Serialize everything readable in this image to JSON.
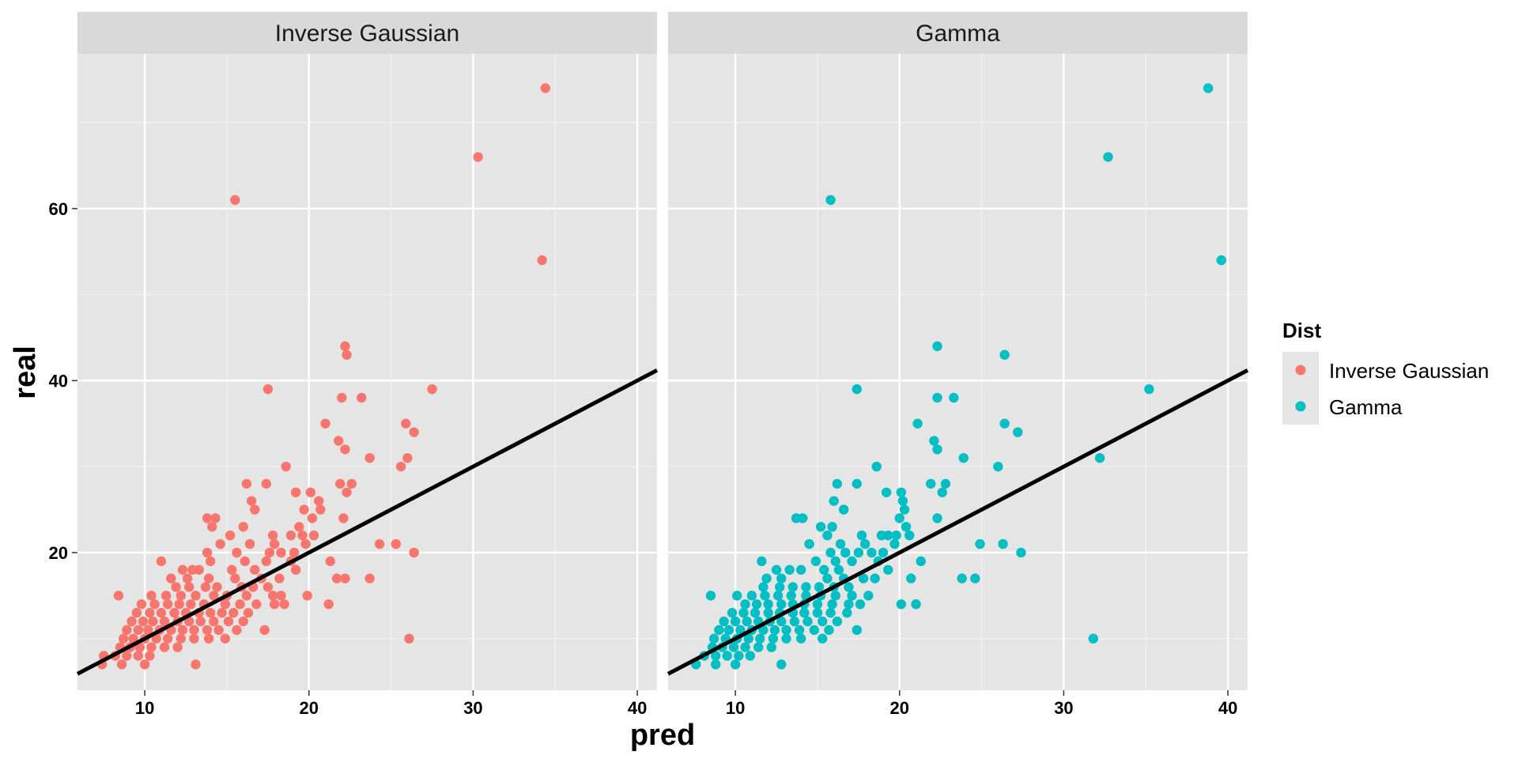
{
  "chart_data": {
    "type": "scatter",
    "facets": [
      "Inverse Gaussian",
      "Gamma"
    ],
    "xlabel": "pred",
    "ylabel": "real",
    "xlim": [
      5.9,
      41.2
    ],
    "ylim": [
      4.0,
      78.0
    ],
    "x_ticks": [
      10,
      20,
      30,
      40
    ],
    "y_ticks": [
      20,
      40,
      60
    ],
    "grid": true,
    "reference_line": {
      "intercept": 0,
      "slope": 1
    },
    "legend": {
      "title": "Dist",
      "position": "right",
      "items": [
        {
          "label": "Inverse Gaussian",
          "color": "#F8766D"
        },
        {
          "label": "Gamma",
          "color": "#00BFC4"
        }
      ]
    },
    "series": [
      {
        "name": "Inverse Gaussian",
        "color": "#F8766D",
        "points": [
          [
            34.4,
            74
          ],
          [
            30.3,
            66
          ],
          [
            15.5,
            61
          ],
          [
            34.2,
            54
          ],
          [
            22.2,
            44
          ],
          [
            22.3,
            43
          ],
          [
            17.5,
            39
          ],
          [
            27.5,
            39
          ],
          [
            22.0,
            38
          ],
          [
            23.2,
            38
          ],
          [
            21.0,
            35
          ],
          [
            25.9,
            35
          ],
          [
            26.4,
            34
          ],
          [
            21.8,
            33
          ],
          [
            22.2,
            32
          ],
          [
            23.7,
            31
          ],
          [
            26.0,
            31
          ],
          [
            18.6,
            30
          ],
          [
            25.6,
            30
          ],
          [
            16.2,
            28
          ],
          [
            17.4,
            28
          ],
          [
            21.9,
            28
          ],
          [
            22.6,
            28
          ],
          [
            19.2,
            27
          ],
          [
            20.1,
            27
          ],
          [
            22.3,
            27
          ],
          [
            16.5,
            26
          ],
          [
            19.7,
            25
          ],
          [
            20.6,
            26
          ],
          [
            20.7,
            25
          ],
          [
            16.7,
            25
          ],
          [
            20.2,
            24
          ],
          [
            22.1,
            24
          ],
          [
            13.8,
            24
          ],
          [
            14.3,
            24
          ],
          [
            14.1,
            23
          ],
          [
            16.0,
            23
          ],
          [
            19.4,
            23
          ],
          [
            15.2,
            22
          ],
          [
            17.8,
            22
          ],
          [
            18.9,
            22
          ],
          [
            19.6,
            22
          ],
          [
            20.3,
            22
          ],
          [
            14.6,
            21
          ],
          [
            16.4,
            21
          ],
          [
            17.9,
            21
          ],
          [
            19.8,
            21
          ],
          [
            24.3,
            21
          ],
          [
            25.3,
            21
          ],
          [
            13.8,
            20
          ],
          [
            15.6,
            20
          ],
          [
            17.6,
            20
          ],
          [
            18.3,
            20
          ],
          [
            19.1,
            20
          ],
          [
            26.4,
            20
          ],
          [
            11.0,
            19
          ],
          [
            14.0,
            19
          ],
          [
            16.1,
            19
          ],
          [
            17.4,
            19
          ],
          [
            18.9,
            19
          ],
          [
            21.3,
            19
          ],
          [
            12.3,
            18
          ],
          [
            12.9,
            18
          ],
          [
            13.3,
            18
          ],
          [
            15.3,
            18
          ],
          [
            16.7,
            18
          ],
          [
            19.2,
            18
          ],
          [
            11.6,
            17
          ],
          [
            12.6,
            17
          ],
          [
            13.9,
            17
          ],
          [
            15.5,
            17
          ],
          [
            17.1,
            17
          ],
          [
            18.2,
            17
          ],
          [
            21.7,
            17
          ],
          [
            22.2,
            17
          ],
          [
            23.7,
            17
          ],
          [
            8.4,
            15
          ],
          [
            11.9,
            16
          ],
          [
            12.7,
            16
          ],
          [
            13.7,
            16
          ],
          [
            14.4,
            16
          ],
          [
            15.9,
            16
          ],
          [
            16.6,
            16
          ],
          [
            17.5,
            16
          ],
          [
            10.4,
            15
          ],
          [
            11.3,
            15
          ],
          [
            12.2,
            15
          ],
          [
            13.1,
            15
          ],
          [
            14.2,
            15
          ],
          [
            15.0,
            15
          ],
          [
            16.2,
            15
          ],
          [
            17.8,
            15
          ],
          [
            18.3,
            15
          ],
          [
            19.9,
            15
          ],
          [
            21.2,
            14
          ],
          [
            9.8,
            14
          ],
          [
            10.6,
            14
          ],
          [
            11.4,
            14
          ],
          [
            12.1,
            14
          ],
          [
            12.8,
            14
          ],
          [
            13.6,
            14
          ],
          [
            14.9,
            14
          ],
          [
            15.8,
            14
          ],
          [
            16.8,
            14
          ],
          [
            17.9,
            14
          ],
          [
            18.5,
            14
          ],
          [
            9.5,
            13
          ],
          [
            10.3,
            13
          ],
          [
            11.0,
            13
          ],
          [
            11.8,
            13
          ],
          [
            12.5,
            13
          ],
          [
            13.3,
            13
          ],
          [
            14.0,
            13
          ],
          [
            14.7,
            13
          ],
          [
            15.4,
            13
          ],
          [
            16.3,
            13
          ],
          [
            9.2,
            12
          ],
          [
            9.9,
            12
          ],
          [
            10.5,
            12
          ],
          [
            11.2,
            12
          ],
          [
            12.0,
            12
          ],
          [
            12.7,
            12
          ],
          [
            13.4,
            12
          ],
          [
            14.2,
            12
          ],
          [
            15.1,
            12
          ],
          [
            16.0,
            12
          ],
          [
            8.9,
            11
          ],
          [
            9.6,
            11
          ],
          [
            10.2,
            11
          ],
          [
            10.9,
            11
          ],
          [
            11.6,
            11
          ],
          [
            12.3,
            11
          ],
          [
            13.0,
            11
          ],
          [
            13.8,
            11
          ],
          [
            14.5,
            11
          ],
          [
            15.6,
            11
          ],
          [
            17.3,
            11
          ],
          [
            8.7,
            10
          ],
          [
            9.3,
            10
          ],
          [
            10.0,
            10
          ],
          [
            10.7,
            10
          ],
          [
            11.4,
            10
          ],
          [
            12.2,
            10
          ],
          [
            13.0,
            10
          ],
          [
            13.9,
            10
          ],
          [
            14.9,
            10
          ],
          [
            26.1,
            10
          ],
          [
            8.5,
            9
          ],
          [
            9.1,
            9
          ],
          [
            9.7,
            9
          ],
          [
            10.4,
            9
          ],
          [
            11.2,
            9
          ],
          [
            12.0,
            9
          ],
          [
            7.5,
            8
          ],
          [
            8.2,
            8
          ],
          [
            8.9,
            8
          ],
          [
            9.6,
            8
          ],
          [
            10.3,
            8
          ],
          [
            7.4,
            7
          ],
          [
            8.6,
            7
          ],
          [
            10.0,
            7
          ],
          [
            13.1,
            7
          ]
        ]
      },
      {
        "name": "Gamma",
        "color": "#00BFC4",
        "points": [
          [
            38.8,
            74
          ],
          [
            32.7,
            66
          ],
          [
            15.8,
            61
          ],
          [
            39.6,
            54
          ],
          [
            22.3,
            44
          ],
          [
            26.4,
            43
          ],
          [
            17.4,
            39
          ],
          [
            35.2,
            39
          ],
          [
            22.3,
            38
          ],
          [
            23.3,
            38
          ],
          [
            21.1,
            35
          ],
          [
            26.4,
            35
          ],
          [
            27.2,
            34
          ],
          [
            22.1,
            33
          ],
          [
            22.3,
            32
          ],
          [
            23.9,
            31
          ],
          [
            32.2,
            31
          ],
          [
            18.6,
            30
          ],
          [
            26.0,
            30
          ],
          [
            16.2,
            28
          ],
          [
            17.4,
            28
          ],
          [
            21.9,
            28
          ],
          [
            22.8,
            28
          ],
          [
            19.2,
            27
          ],
          [
            20.1,
            27
          ],
          [
            22.6,
            27
          ],
          [
            16.0,
            26
          ],
          [
            20.2,
            26
          ],
          [
            16.6,
            25
          ],
          [
            20.3,
            25
          ],
          [
            13.7,
            24
          ],
          [
            14.1,
            24
          ],
          [
            20.0,
            24
          ],
          [
            22.3,
            24
          ],
          [
            15.2,
            23
          ],
          [
            15.9,
            23
          ],
          [
            20.4,
            23
          ],
          [
            15.6,
            22
          ],
          [
            17.7,
            22
          ],
          [
            18.9,
            22
          ],
          [
            19.3,
            22
          ],
          [
            19.8,
            22
          ],
          [
            20.6,
            22
          ],
          [
            14.5,
            21
          ],
          [
            16.4,
            21
          ],
          [
            17.9,
            21
          ],
          [
            19.7,
            21
          ],
          [
            24.9,
            21
          ],
          [
            26.3,
            21
          ],
          [
            15.8,
            20
          ],
          [
            16.7,
            20
          ],
          [
            17.5,
            20
          ],
          [
            18.3,
            20
          ],
          [
            19.0,
            20
          ],
          [
            27.4,
            20
          ],
          [
            11.6,
            19
          ],
          [
            14.9,
            19
          ],
          [
            16.1,
            19
          ],
          [
            17.1,
            19
          ],
          [
            18.7,
            19
          ],
          [
            21.3,
            19
          ],
          [
            12.5,
            18
          ],
          [
            13.3,
            18
          ],
          [
            14.0,
            18
          ],
          [
            15.4,
            18
          ],
          [
            16.3,
            18
          ],
          [
            19.3,
            18
          ],
          [
            11.9,
            17
          ],
          [
            12.8,
            17
          ],
          [
            15.6,
            17
          ],
          [
            16.6,
            17
          ],
          [
            17.8,
            17
          ],
          [
            18.5,
            17
          ],
          [
            20.7,
            17
          ],
          [
            23.8,
            17
          ],
          [
            24.6,
            17
          ],
          [
            8.5,
            15
          ],
          [
            11.7,
            16
          ],
          [
            12.7,
            16
          ],
          [
            13.5,
            16
          ],
          [
            14.3,
            16
          ],
          [
            15.1,
            16
          ],
          [
            16.0,
            16
          ],
          [
            16.9,
            16
          ],
          [
            10.1,
            15
          ],
          [
            11.0,
            15
          ],
          [
            11.8,
            15
          ],
          [
            12.6,
            15
          ],
          [
            13.4,
            15
          ],
          [
            14.3,
            15
          ],
          [
            15.2,
            15
          ],
          [
            16.1,
            15
          ],
          [
            17.1,
            15
          ],
          [
            18.1,
            15
          ],
          [
            20.1,
            14
          ],
          [
            10.6,
            14
          ],
          [
            11.3,
            14
          ],
          [
            12.0,
            14
          ],
          [
            12.8,
            14
          ],
          [
            13.5,
            14
          ],
          [
            14.2,
            14
          ],
          [
            15.0,
            14
          ],
          [
            15.9,
            14
          ],
          [
            16.9,
            14
          ],
          [
            17.6,
            14
          ],
          [
            21.0,
            14
          ],
          [
            9.8,
            13
          ],
          [
            10.5,
            13
          ],
          [
            11.2,
            13
          ],
          [
            12.0,
            13
          ],
          [
            12.7,
            13
          ],
          [
            13.5,
            13
          ],
          [
            14.2,
            13
          ],
          [
            15.0,
            13
          ],
          [
            15.8,
            13
          ],
          [
            16.8,
            13
          ],
          [
            9.3,
            12
          ],
          [
            10.0,
            12
          ],
          [
            10.7,
            12
          ],
          [
            11.4,
            12
          ],
          [
            12.1,
            12
          ],
          [
            12.8,
            12
          ],
          [
            13.6,
            12
          ],
          [
            14.4,
            12
          ],
          [
            15.3,
            12
          ],
          [
            16.2,
            12
          ],
          [
            9.0,
            11
          ],
          [
            9.6,
            11
          ],
          [
            10.3,
            11
          ],
          [
            11.0,
            11
          ],
          [
            11.7,
            11
          ],
          [
            12.4,
            11
          ],
          [
            13.1,
            11
          ],
          [
            13.9,
            11
          ],
          [
            14.8,
            11
          ],
          [
            15.7,
            11
          ],
          [
            17.4,
            11
          ],
          [
            8.7,
            10
          ],
          [
            9.4,
            10
          ],
          [
            10.1,
            10
          ],
          [
            10.8,
            10
          ],
          [
            11.5,
            10
          ],
          [
            12.3,
            10
          ],
          [
            13.1,
            10
          ],
          [
            14.0,
            10
          ],
          [
            15.3,
            10
          ],
          [
            31.8,
            10
          ],
          [
            8.6,
            9
          ],
          [
            9.2,
            9
          ],
          [
            9.9,
            9
          ],
          [
            10.6,
            9
          ],
          [
            11.4,
            9
          ],
          [
            12.2,
            9
          ],
          [
            8.1,
            8
          ],
          [
            8.8,
            8
          ],
          [
            9.5,
            8
          ],
          [
            10.2,
            8
          ],
          [
            10.9,
            8
          ],
          [
            7.6,
            7
          ],
          [
            8.8,
            7
          ],
          [
            10.0,
            7
          ],
          [
            12.8,
            7
          ]
        ]
      }
    ]
  }
}
